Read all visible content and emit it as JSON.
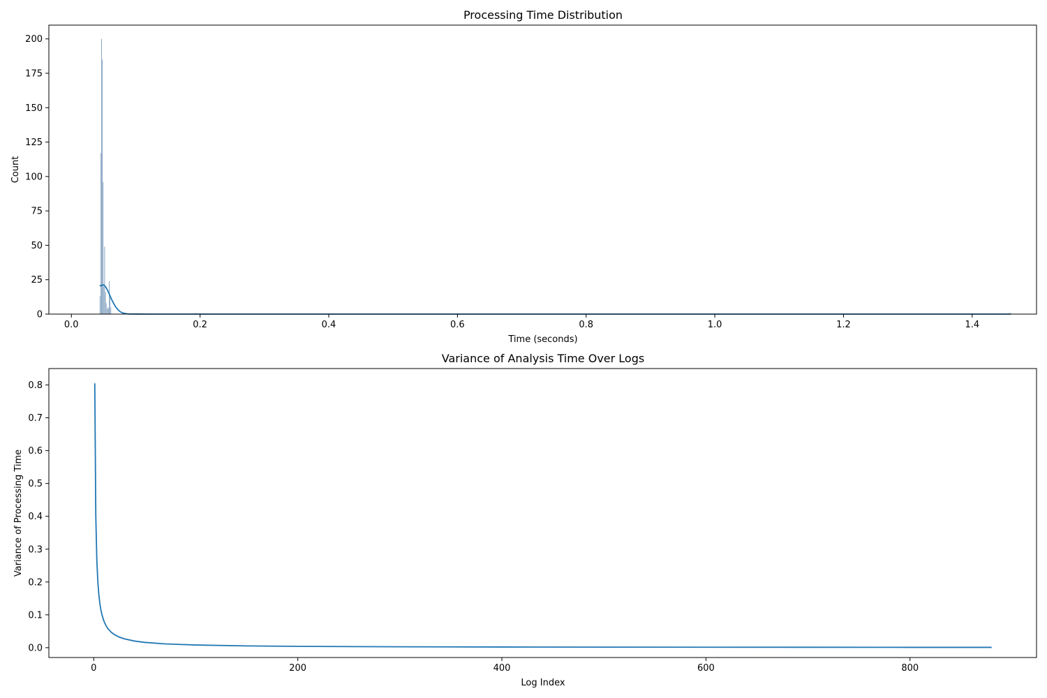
{
  "chart_data": [
    {
      "type": "bar",
      "title": "Processing Time Distribution",
      "xlabel": "Time (seconds)",
      "ylabel": "Count",
      "xlim": [
        -0.035,
        1.5
      ],
      "ylim": [
        0,
        210
      ],
      "xticks": [
        0.0,
        0.2,
        0.4,
        0.6,
        0.8,
        1.0,
        1.2,
        1.4
      ],
      "xtick_labels": [
        "0.0",
        "0.2",
        "0.4",
        "0.6",
        "0.8",
        "1.0",
        "1.2",
        "1.4"
      ],
      "yticks": [
        0,
        25,
        50,
        75,
        100,
        125,
        150,
        175,
        200
      ],
      "ytick_labels": [
        "0",
        "25",
        "50",
        "75",
        "100",
        "125",
        "150",
        "175",
        "200"
      ],
      "grid": false,
      "bin_width": 0.0012,
      "bars": [
        {
          "x": 0.0445,
          "count": 13
        },
        {
          "x": 0.0457,
          "count": 117
        },
        {
          "x": 0.0469,
          "count": 200
        },
        {
          "x": 0.0481,
          "count": 185
        },
        {
          "x": 0.0493,
          "count": 96
        },
        {
          "x": 0.0505,
          "count": 20
        },
        {
          "x": 0.0517,
          "count": 49
        },
        {
          "x": 0.0529,
          "count": 16
        },
        {
          "x": 0.0541,
          "count": 8
        },
        {
          "x": 0.0553,
          "count": 4
        },
        {
          "x": 0.0565,
          "count": 5
        },
        {
          "x": 0.0577,
          "count": 4
        },
        {
          "x": 0.0589,
          "count": 24
        },
        {
          "x": 0.0601,
          "count": 13
        },
        {
          "x": 0.0613,
          "count": 5
        },
        {
          "x": 0.1925,
          "count": 1
        },
        {
          "x": 1.4595,
          "count": 1
        }
      ],
      "kde": {
        "x": [
          0.044,
          0.046,
          0.048,
          0.05,
          0.052,
          0.054,
          0.056,
          0.058,
          0.06,
          0.062,
          0.064,
          0.066,
          0.068,
          0.07,
          0.073,
          0.076,
          0.08,
          0.085,
          0.09,
          0.1,
          0.12,
          0.2,
          0.4,
          0.8,
          1.2,
          1.46
        ],
        "y": [
          20.5,
          20.8,
          21.0,
          21.3,
          20.5,
          19.2,
          17.5,
          15.5,
          13.3,
          11.2,
          9.3,
          7.5,
          5.9,
          4.5,
          2.9,
          1.7,
          0.8,
          0.3,
          0.1,
          0.03,
          0.01,
          0.01,
          0.0,
          0.0,
          0.0,
          0.0
        ]
      }
    },
    {
      "type": "line",
      "title": "Variance of Analysis Time Over Logs",
      "xlabel": "Log Index",
      "ylabel": "Variance of Processing Time",
      "xlim": [
        -44,
        924
      ],
      "ylim": [
        -0.03,
        0.85
      ],
      "xticks": [
        0,
        200,
        400,
        600,
        800
      ],
      "xtick_labels": [
        "0",
        "200",
        "400",
        "600",
        "800"
      ],
      "yticks": [
        0.0,
        0.1,
        0.2,
        0.3,
        0.4,
        0.5,
        0.6,
        0.7,
        0.8
      ],
      "ytick_labels": [
        "0.0",
        "0.1",
        "0.2",
        "0.3",
        "0.4",
        "0.5",
        "0.6",
        "0.7",
        "0.8"
      ],
      "grid": false,
      "series": [
        {
          "x": [
            1,
            2,
            3,
            4,
            5,
            6,
            7,
            8,
            10,
            12,
            14,
            17,
            20,
            25,
            30,
            40,
            50,
            70,
            100,
            150,
            200,
            300,
            400,
            500,
            600,
            700,
            800,
            880
          ],
          "y": [
            0.805,
            0.402,
            0.268,
            0.201,
            0.161,
            0.134,
            0.115,
            0.101,
            0.0805,
            0.0671,
            0.0575,
            0.0474,
            0.0403,
            0.0322,
            0.0268,
            0.0201,
            0.0161,
            0.0115,
            0.0081,
            0.0054,
            0.004,
            0.0027,
            0.002,
            0.0016,
            0.0013,
            0.0012,
            0.001,
            0.0009
          ]
        }
      ]
    }
  ],
  "colors": {
    "bar_fill": "#6a8fb3",
    "bar_edge": "#ffffff",
    "line": "#1f77b4"
  }
}
